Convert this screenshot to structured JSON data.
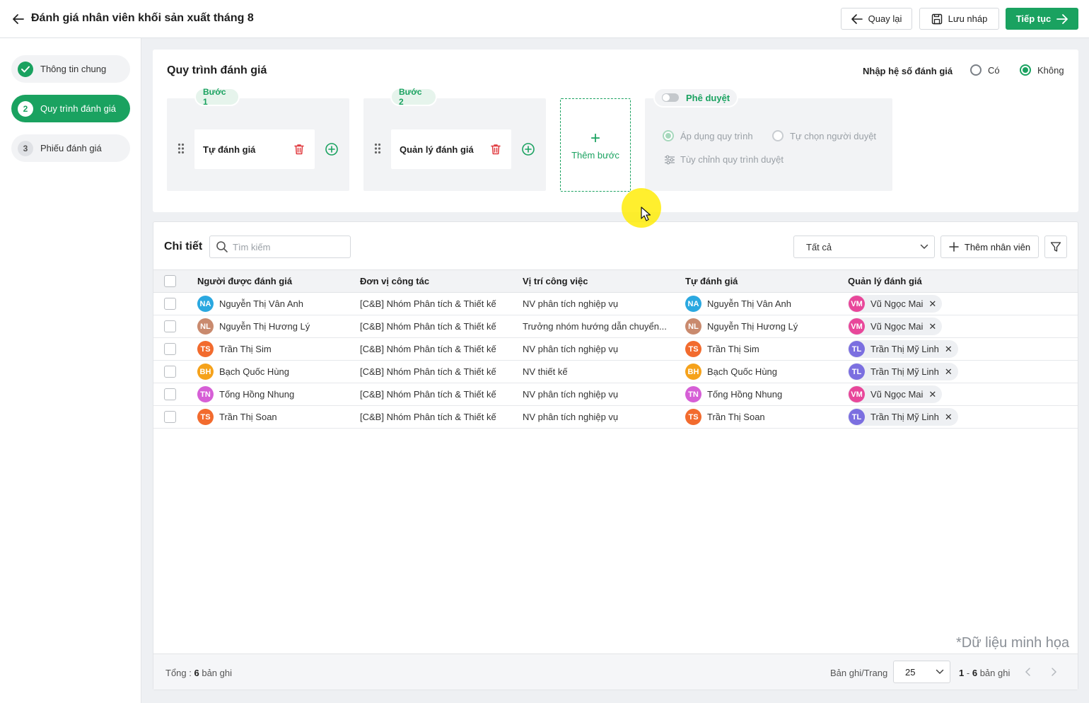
{
  "header": {
    "title": "Đánh giá nhân viên khối sản xuất tháng 8",
    "back_label": "Quay lại",
    "draft_label": "Lưu nháp",
    "next_label": "Tiếp tục"
  },
  "sidebar": {
    "steps": [
      {
        "number": "1",
        "label": "Thông tin chung",
        "state": "done"
      },
      {
        "number": "2",
        "label": "Quy trình đánh giá",
        "state": "active"
      },
      {
        "number": "3",
        "label": "Phiếu đánh giá",
        "state": "todo"
      }
    ]
  },
  "process": {
    "title": "Quy trình đánh giá",
    "coefficient_label": "Nhập hệ số đánh giá",
    "coefficient_options": [
      {
        "label": "Có",
        "selected": false
      },
      {
        "label": "Không",
        "selected": true
      }
    ],
    "steps": [
      {
        "tag": "Bước 1",
        "name": "Tự đánh giá"
      },
      {
        "tag": "Bước 2",
        "name": "Quản lý đánh giá"
      }
    ],
    "add_step_label": "Thêm bước",
    "approval": {
      "label": "Phê duyệt",
      "enabled": false,
      "option_apply": "Áp dụng quy trình",
      "option_choose": "Tự chọn người duyệt",
      "customize_label": "Tùy chỉnh quy trình duyệt"
    }
  },
  "detail": {
    "title": "Chi tiết",
    "search_placeholder": "Tìm kiếm",
    "filter_value": "Tất cả",
    "add_employee_label": "Thêm nhân viên",
    "columns": [
      "Người được đánh giá",
      "Đơn vị công tác",
      "Vị trí công việc",
      "Tự đánh giá",
      "Quản lý đánh giá"
    ],
    "rows": [
      {
        "initials": "NA",
        "color": "#2aa8e0",
        "name": "Nguyễn Thị Vân Anh",
        "unit": "[C&B] Nhóm Phân tích & Thiết kế",
        "position": "NV phân tích nghiệp vụ",
        "self": "Nguyễn Thị Vân Anh",
        "mgr_initials": "VM",
        "mgr_color": "#e8479a",
        "manager": "Vũ Ngọc Mai"
      },
      {
        "initials": "NL",
        "color": "#c98a6e",
        "name": "Nguyễn Thị Hương Lý",
        "unit": "[C&B] Nhóm Phân tích & Thiết kế",
        "position": "Trưởng nhóm hướng dẫn chuyển...",
        "self": "Nguyễn Thị Hương Lý",
        "mgr_initials": "VM",
        "mgr_color": "#e8479a",
        "manager": "Vũ Ngọc Mai"
      },
      {
        "initials": "TS",
        "color": "#f26b2e",
        "name": "Trần Thị Sim",
        "unit": "[C&B] Nhóm Phân tích & Thiết kế",
        "position": "NV phân tích nghiệp vụ",
        "self": "Trần Thị Sim",
        "mgr_initials": "TL",
        "mgr_color": "#7b6fe0",
        "manager": "Trần Thị Mỹ Linh"
      },
      {
        "initials": "BH",
        "color": "#f5a21b",
        "name": "Bạch Quốc Hùng",
        "unit": "[C&B] Nhóm Phân tích & Thiết kế",
        "position": "NV thiết kế",
        "self": "Bạch Quốc Hùng",
        "mgr_initials": "TL",
        "mgr_color": "#7b6fe0",
        "manager": "Trần Thị Mỹ Linh"
      },
      {
        "initials": "TN",
        "color": "#d65fd6",
        "name": "Tống Hồng Nhung",
        "unit": "[C&B] Nhóm Phân tích & Thiết kế",
        "position": "NV phân tích nghiệp vụ",
        "self": "Tống Hồng Nhung",
        "mgr_initials": "VM",
        "mgr_color": "#e8479a",
        "manager": "Vũ Ngọc Mai"
      },
      {
        "initials": "TS",
        "color": "#f26b2e",
        "name": "Trần Thị Soan",
        "unit": "[C&B] Nhóm Phân tích & Thiết kế",
        "position": "NV phân tích nghiệp vụ",
        "self": "Trần Thị Soan",
        "mgr_initials": "TL",
        "mgr_color": "#7b6fe0",
        "manager": "Trần Thị Mỹ Linh"
      }
    ],
    "watermark": "*Dữ liệu minh họa",
    "footer": {
      "total_label": "Tổng :",
      "total_count": "6",
      "total_suffix": "bản ghi",
      "per_page_label": "Bản ghi/Trang",
      "per_page_value": "25",
      "range_start": "1",
      "range_sep": "-",
      "range_end": "6",
      "range_suffix": "bản ghi"
    }
  },
  "colors": {
    "accent": "#1aa260",
    "danger": "#e0393e"
  }
}
